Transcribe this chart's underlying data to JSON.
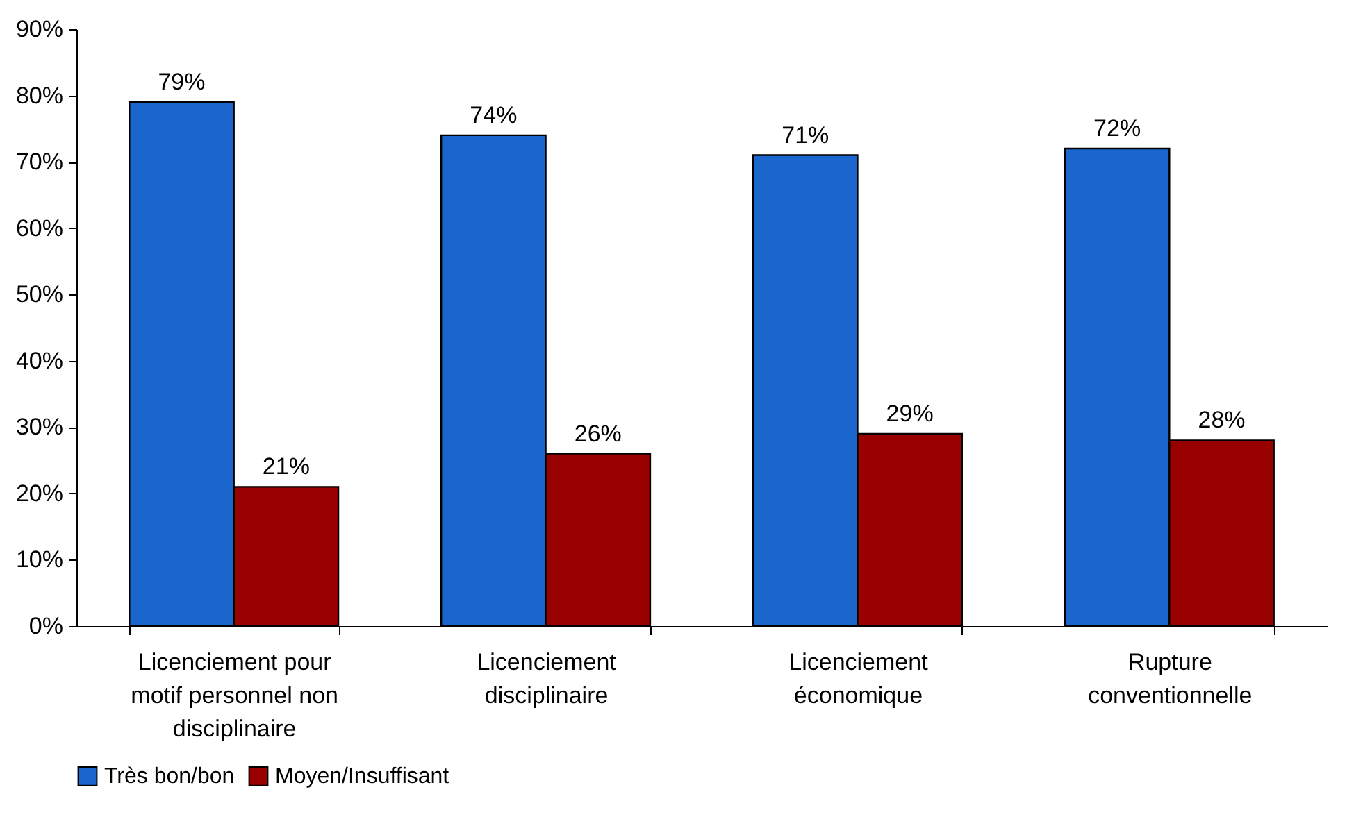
{
  "chart_data": {
    "type": "bar",
    "categories": [
      "Licenciement pour motif personnel non disciplinaire",
      "Licenciement disciplinaire",
      "Licenciement économique",
      "Rupture conventionnelle"
    ],
    "series": [
      {
        "name": "Très bon/bon",
        "color": "#1a66cc",
        "values": [
          79,
          74,
          71,
          72
        ],
        "value_labels": [
          "79%",
          "74%",
          "71%",
          "72%"
        ]
      },
      {
        "name": "Moyen/Insuffisant",
        "color": "#990000",
        "values": [
          21,
          26,
          29,
          28
        ],
        "value_labels": [
          "21%",
          "26%",
          "29%",
          "28%"
        ]
      }
    ],
    "ylim": [
      0,
      90
    ],
    "yticks": [
      {
        "value": 0,
        "label": "0%"
      },
      {
        "value": 10,
        "label": "10%"
      },
      {
        "value": 20,
        "label": "20%"
      },
      {
        "value": 30,
        "label": "30%"
      },
      {
        "value": 40,
        "label": "40%"
      },
      {
        "value": 50,
        "label": "50%"
      },
      {
        "value": 60,
        "label": "60%"
      },
      {
        "value": 70,
        "label": "70%"
      },
      {
        "value": 80,
        "label": "80%"
      },
      {
        "value": 90,
        "label": "90%"
      }
    ],
    "grid": false,
    "legend": "bottom"
  }
}
